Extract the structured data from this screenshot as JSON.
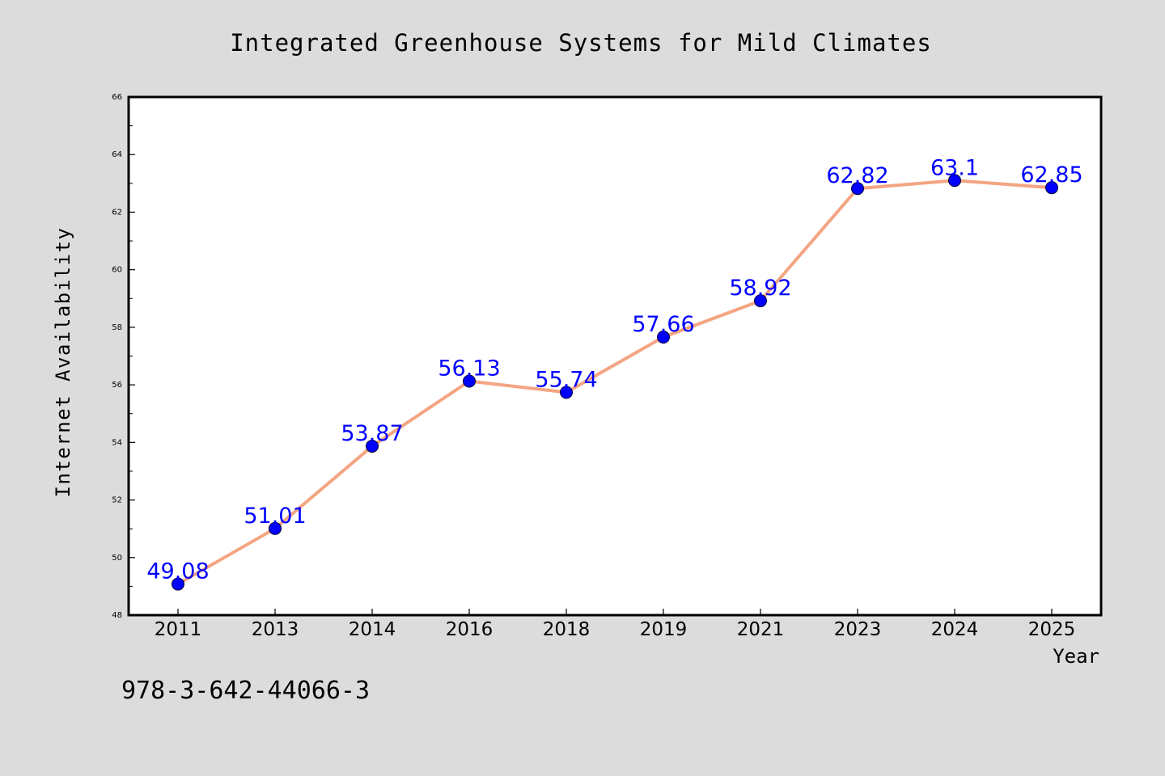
{
  "chart_data": {
    "type": "line",
    "title": "Integrated Greenhouse Systems for Mild Climates",
    "xlabel": "Year",
    "ylabel": "Internet Availability",
    "categories": [
      "2011",
      "2013",
      "2014",
      "2016",
      "2018",
      "2019",
      "2021",
      "2023",
      "2024",
      "2025"
    ],
    "series": [
      {
        "values": [
          49.08,
          51.01,
          53.87,
          56.13,
          55.74,
          57.66,
          58.92,
          62.82,
          63.1,
          62.85
        ],
        "labels": [
          "49.08",
          "51.01",
          "53.87",
          "56.13",
          "55.74",
          "57.66",
          "58.92",
          "62.82",
          "63.1",
          "62.85"
        ]
      }
    ],
    "ylim": [
      48,
      66
    ],
    "yticks": [
      "48",
      "50",
      "52",
      "54",
      "56",
      "58",
      "60",
      "62",
      "64",
      "66"
    ],
    "grid": false,
    "colors": {
      "line": "#f4a582",
      "marker": "#0000ff",
      "data_label": "#0000ff",
      "background": "#dcdcdc",
      "plot_background": "#ffffff"
    }
  },
  "footer_code": "978-3-642-44066-3"
}
